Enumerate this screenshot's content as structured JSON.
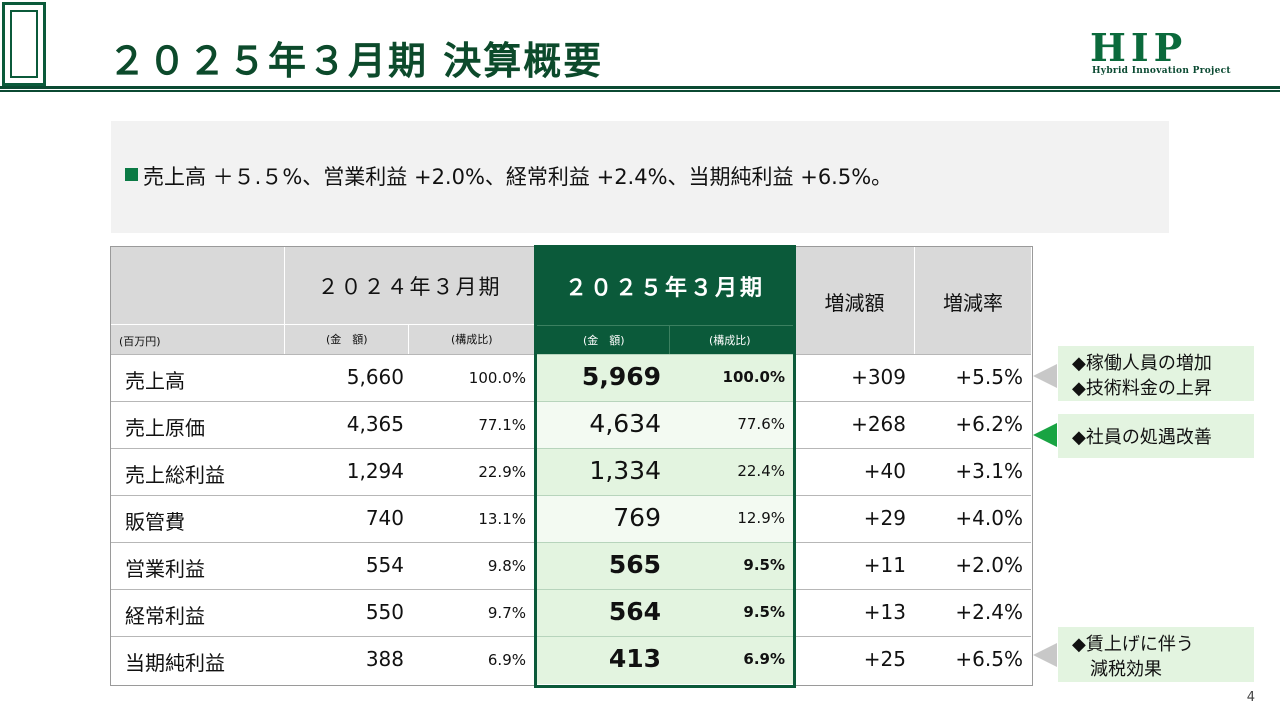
{
  "title": "２０２５年３月期 決算概要",
  "logo": {
    "main": "HIP",
    "sub": "Hybrid Innovation Project"
  },
  "summary": {
    "text": "売上高 ＋５.５%、営業利益 +2.0%、経常利益 +2.4%、当期純利益 +6.5%。"
  },
  "table": {
    "unit": "(百万円)",
    "header_prev": "２０２４年３月期",
    "header_curr": "２０２５年３月期",
    "header_diff": "増減額",
    "header_rate": "増減率",
    "sub_amount": "(金　額)",
    "sub_ratio": "(構成比)",
    "rows": [
      {
        "name": "売上高",
        "prev": "5,660",
        "prev_ratio": "100.0%",
        "curr": "5,969",
        "curr_ratio": "100.0%",
        "diff": "+309",
        "rate": "+5.5%",
        "bold": true
      },
      {
        "name": "売上原価",
        "prev": "4,365",
        "prev_ratio": "77.1%",
        "curr": "4,634",
        "curr_ratio": "77.6%",
        "diff": "+268",
        "rate": "+6.2%",
        "bold": false
      },
      {
        "name": "売上総利益",
        "prev": "1,294",
        "prev_ratio": "22.9%",
        "curr": "1,334",
        "curr_ratio": "22.4%",
        "diff": "+40",
        "rate": "+3.1%",
        "bold": false
      },
      {
        "name": "販管費",
        "prev": "740",
        "prev_ratio": "13.1%",
        "curr": "769",
        "curr_ratio": "12.9%",
        "diff": "+29",
        "rate": "+4.0%",
        "bold": false
      },
      {
        "name": "営業利益",
        "prev": "554",
        "prev_ratio": "9.8%",
        "curr": "565",
        "curr_ratio": "9.5%",
        "diff": "+11",
        "rate": "+2.0%",
        "bold": true
      },
      {
        "name": "経常利益",
        "prev": "550",
        "prev_ratio": "9.7%",
        "curr": "564",
        "curr_ratio": "9.5%",
        "diff": "+13",
        "rate": "+2.4%",
        "bold": true
      },
      {
        "name": "当期純利益",
        "prev": "388",
        "prev_ratio": "6.9%",
        "curr": "413",
        "curr_ratio": "6.9%",
        "diff": "+25",
        "rate": "+6.5%",
        "bold": true
      }
    ]
  },
  "callouts": {
    "sales_line1": "◆稼働人員の増加",
    "sales_line2": "◆技術料金の上昇",
    "cost": "◆社員の処遇改善",
    "net_line1": "◆賃上げに伴う",
    "net_line2": "減税効果"
  },
  "colors": {
    "brand_green": "#0b5a3a",
    "highlight_bg": "#e3f4e0",
    "header_gray": "#d9d9d9"
  },
  "page_number": "4"
}
